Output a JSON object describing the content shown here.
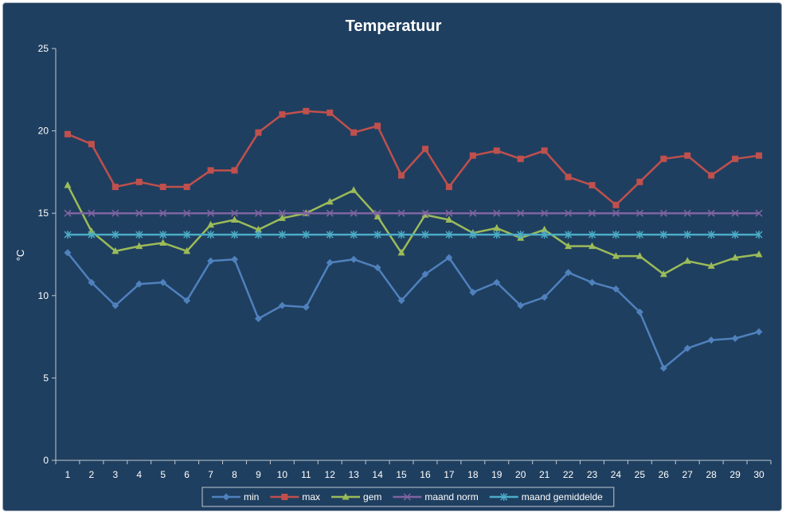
{
  "chart_data": {
    "type": "line",
    "title": "Temperatuur",
    "xlabel": "",
    "ylabel": "°C",
    "ylim": [
      0,
      25
    ],
    "yticks": [
      0,
      5,
      10,
      15,
      20,
      25
    ],
    "grid": false,
    "legend_position": "bottom",
    "background_color": "#1f3f60",
    "categories": [
      "1",
      "2",
      "3",
      "4",
      "5",
      "6",
      "7",
      "8",
      "9",
      "10",
      "11",
      "12",
      "13",
      "14",
      "15",
      "16",
      "17",
      "18",
      "19",
      "20",
      "21",
      "22",
      "23",
      "24",
      "25",
      "26",
      "27",
      "28",
      "29",
      "30"
    ],
    "series": [
      {
        "name": "min",
        "color": "#4f81bd",
        "marker": "diamond",
        "values": [
          12.6,
          10.8,
          9.4,
          10.7,
          10.8,
          9.7,
          12.1,
          12.2,
          8.6,
          9.4,
          9.3,
          12.0,
          12.2,
          11.7,
          9.7,
          11.3,
          12.3,
          10.2,
          10.8,
          9.4,
          9.9,
          11.4,
          10.8,
          10.4,
          9.0,
          5.6,
          6.8,
          7.3,
          7.4,
          7.8
        ]
      },
      {
        "name": "max",
        "color": "#c0504d",
        "marker": "square",
        "values": [
          19.8,
          19.2,
          16.6,
          16.9,
          16.6,
          16.6,
          17.6,
          17.6,
          19.9,
          21.0,
          21.2,
          21.1,
          19.9,
          20.3,
          17.3,
          18.9,
          16.6,
          18.5,
          18.8,
          18.3,
          18.8,
          17.2,
          16.7,
          15.5,
          16.9,
          18.3,
          18.5,
          17.3,
          18.3,
          18.5
        ]
      },
      {
        "name": "gem",
        "color": "#9bbb59",
        "marker": "triangle",
        "values": [
          16.7,
          13.9,
          12.7,
          13.0,
          13.2,
          12.7,
          14.3,
          14.6,
          14.0,
          14.7,
          15.0,
          15.7,
          16.4,
          14.8,
          12.6,
          14.9,
          14.6,
          13.8,
          14.1,
          13.5,
          14.0,
          13.0,
          13.0,
          12.4,
          12.4,
          11.3,
          12.1,
          11.8,
          12.3,
          12.5
        ]
      },
      {
        "name": "maand norm",
        "color": "#8064a2",
        "marker": "x",
        "values": [
          15.0,
          15.0,
          15.0,
          15.0,
          15.0,
          15.0,
          15.0,
          15.0,
          15.0,
          15.0,
          15.0,
          15.0,
          15.0,
          15.0,
          15.0,
          15.0,
          15.0,
          15.0,
          15.0,
          15.0,
          15.0,
          15.0,
          15.0,
          15.0,
          15.0,
          15.0,
          15.0,
          15.0,
          15.0,
          15.0
        ]
      },
      {
        "name": "maand gemiddelde",
        "color": "#4bacc6",
        "marker": "star",
        "values": [
          13.7,
          13.7,
          13.7,
          13.7,
          13.7,
          13.7,
          13.7,
          13.7,
          13.7,
          13.7,
          13.7,
          13.7,
          13.7,
          13.7,
          13.7,
          13.7,
          13.7,
          13.7,
          13.7,
          13.7,
          13.7,
          13.7,
          13.7,
          13.7,
          13.7,
          13.7,
          13.7,
          13.7,
          13.7,
          13.7
        ]
      }
    ]
  }
}
